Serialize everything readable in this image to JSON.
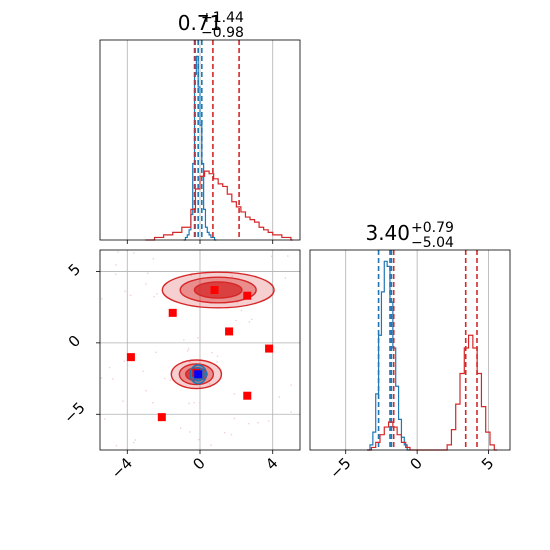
{
  "chart_data": [
    {
      "panel": "marginal-param-1",
      "type": "histogram",
      "title": {
        "value": "0.71",
        "upper": "+1.44",
        "lower": "−0.98"
      },
      "xlim": [
        -5.5,
        5.5
      ],
      "grid": true,
      "series": [
        {
          "color": "#1f77b4",
          "bins": [
            [
              -0.9,
              0.0
            ],
            [
              -0.8,
              0.01
            ],
            [
              -0.7,
              0.02
            ],
            [
              -0.6,
              0.04
            ],
            [
              -0.5,
              0.1
            ],
            [
              -0.4,
              0.3
            ],
            [
              -0.3,
              0.65
            ],
            [
              -0.2,
              0.72
            ],
            [
              -0.1,
              0.6
            ],
            [
              0.0,
              0.45
            ],
            [
              0.1,
              0.3
            ],
            [
              0.2,
              0.12
            ],
            [
              0.3,
              0.05
            ],
            [
              0.4,
              0.03
            ],
            [
              0.5,
              0.02
            ],
            [
              0.6,
              0.01
            ],
            [
              0.7,
              0.01
            ],
            [
              0.8,
              0.0
            ]
          ],
          "quantiles": [
            -0.3,
            -0.1,
            0.1
          ]
        },
        {
          "color": "#d62728",
          "bins": [
            [
              -3.0,
              0.0
            ],
            [
              -2.5,
              0.01
            ],
            [
              -2.0,
              0.02
            ],
            [
              -1.5,
              0.03
            ],
            [
              -1.0,
              0.05
            ],
            [
              -0.5,
              0.12
            ],
            [
              -0.25,
              0.2
            ],
            [
              0.0,
              0.25
            ],
            [
              0.25,
              0.27
            ],
            [
              0.5,
              0.26
            ],
            [
              0.75,
              0.24
            ],
            [
              1.0,
              0.22
            ],
            [
              1.25,
              0.21
            ],
            [
              1.5,
              0.18
            ],
            [
              1.75,
              0.15
            ],
            [
              2.0,
              0.13
            ],
            [
              2.25,
              0.11
            ],
            [
              2.5,
              0.09
            ],
            [
              2.75,
              0.08
            ],
            [
              3.0,
              0.07
            ],
            [
              3.25,
              0.05
            ],
            [
              3.5,
              0.04
            ],
            [
              3.75,
              0.03
            ],
            [
              4.0,
              0.02
            ],
            [
              4.5,
              0.01
            ],
            [
              5.0,
              0.0
            ]
          ],
          "quantiles": [
            -0.27,
            0.71,
            2.15
          ]
        }
      ]
    },
    {
      "panel": "marginal-param-2",
      "type": "histogram",
      "title": {
        "value": "3.40",
        "upper": "+0.79",
        "lower": "−5.04"
      },
      "xlim": [
        -7.5,
        6.5
      ],
      "xticks": [
        "−5",
        "0",
        "5"
      ],
      "grid": true,
      "series": [
        {
          "color": "#1f77b4",
          "bins": [
            [
              -3.5,
              0.0
            ],
            [
              -3.3,
              0.02
            ],
            [
              -3.1,
              0.07
            ],
            [
              -2.9,
              0.22
            ],
            [
              -2.7,
              0.45
            ],
            [
              -2.5,
              0.62
            ],
            [
              -2.3,
              0.74
            ],
            [
              -2.1,
              0.72
            ],
            [
              -1.9,
              0.58
            ],
            [
              -1.7,
              0.4
            ],
            [
              -1.5,
              0.25
            ],
            [
              -1.3,
              0.12
            ],
            [
              -1.1,
              0.05
            ],
            [
              -0.9,
              0.02
            ],
            [
              -0.7,
              0.0
            ]
          ],
          "quantiles": [
            -2.7,
            -1.9,
            -1.8
          ]
        },
        {
          "color": "#d62728",
          "bins": [
            [
              -3.5,
              0.0
            ],
            [
              -3.2,
              0.01
            ],
            [
              -2.9,
              0.03
            ],
            [
              -2.6,
              0.06
            ],
            [
              -2.3,
              0.09
            ],
            [
              -2.0,
              0.11
            ],
            [
              -1.7,
              0.09
            ],
            [
              -1.4,
              0.06
            ],
            [
              -1.1,
              0.03
            ],
            [
              -0.8,
              0.01
            ],
            [
              -0.5,
              0.0
            ],
            [
              1.8,
              0.0
            ],
            [
              2.1,
              0.02
            ],
            [
              2.4,
              0.08
            ],
            [
              2.7,
              0.18
            ],
            [
              3.0,
              0.3
            ],
            [
              3.3,
              0.4
            ],
            [
              3.6,
              0.45
            ],
            [
              3.9,
              0.4
            ],
            [
              4.2,
              0.3
            ],
            [
              4.5,
              0.17
            ],
            [
              4.8,
              0.07
            ],
            [
              5.1,
              0.02
            ],
            [
              5.4,
              0.0
            ]
          ],
          "quantiles": [
            -1.64,
            3.4,
            4.19
          ]
        }
      ]
    },
    {
      "panel": "joint-param1-param2",
      "type": "contour",
      "xlim": [
        -5.5,
        5.5
      ],
      "ylim": [
        -7.5,
        6.5
      ],
      "xticks": [
        "−4",
        "0",
        "4"
      ],
      "yticks": [
        "5",
        "0",
        "−5"
      ],
      "grid": true,
      "series": [
        {
          "color": "#d62728",
          "modes": [
            [
              1.0,
              3.7,
              2.9,
              1.25
            ],
            [
              -0.2,
              -2.2,
              1.3,
              1.0
            ]
          ]
        },
        {
          "color": "#1f77b4",
          "modes": [
            [
              -0.1,
              -2.2,
              0.45,
              0.65
            ]
          ]
        }
      ],
      "markers": [
        {
          "color": "#ff0000",
          "points": [
            [
              0.8,
              3.7
            ],
            [
              2.6,
              3.3
            ],
            [
              -1.5,
              2.1
            ],
            [
              1.6,
              0.8
            ],
            [
              -3.8,
              -1.0
            ],
            [
              3.8,
              -0.4
            ],
            [
              -0.2,
              -2.1
            ],
            [
              -2.1,
              -5.2
            ],
            [
              2.6,
              -3.7
            ]
          ]
        },
        {
          "color": "#0000ff",
          "points": [
            [
              -0.1,
              -2.2
            ]
          ]
        }
      ]
    }
  ]
}
